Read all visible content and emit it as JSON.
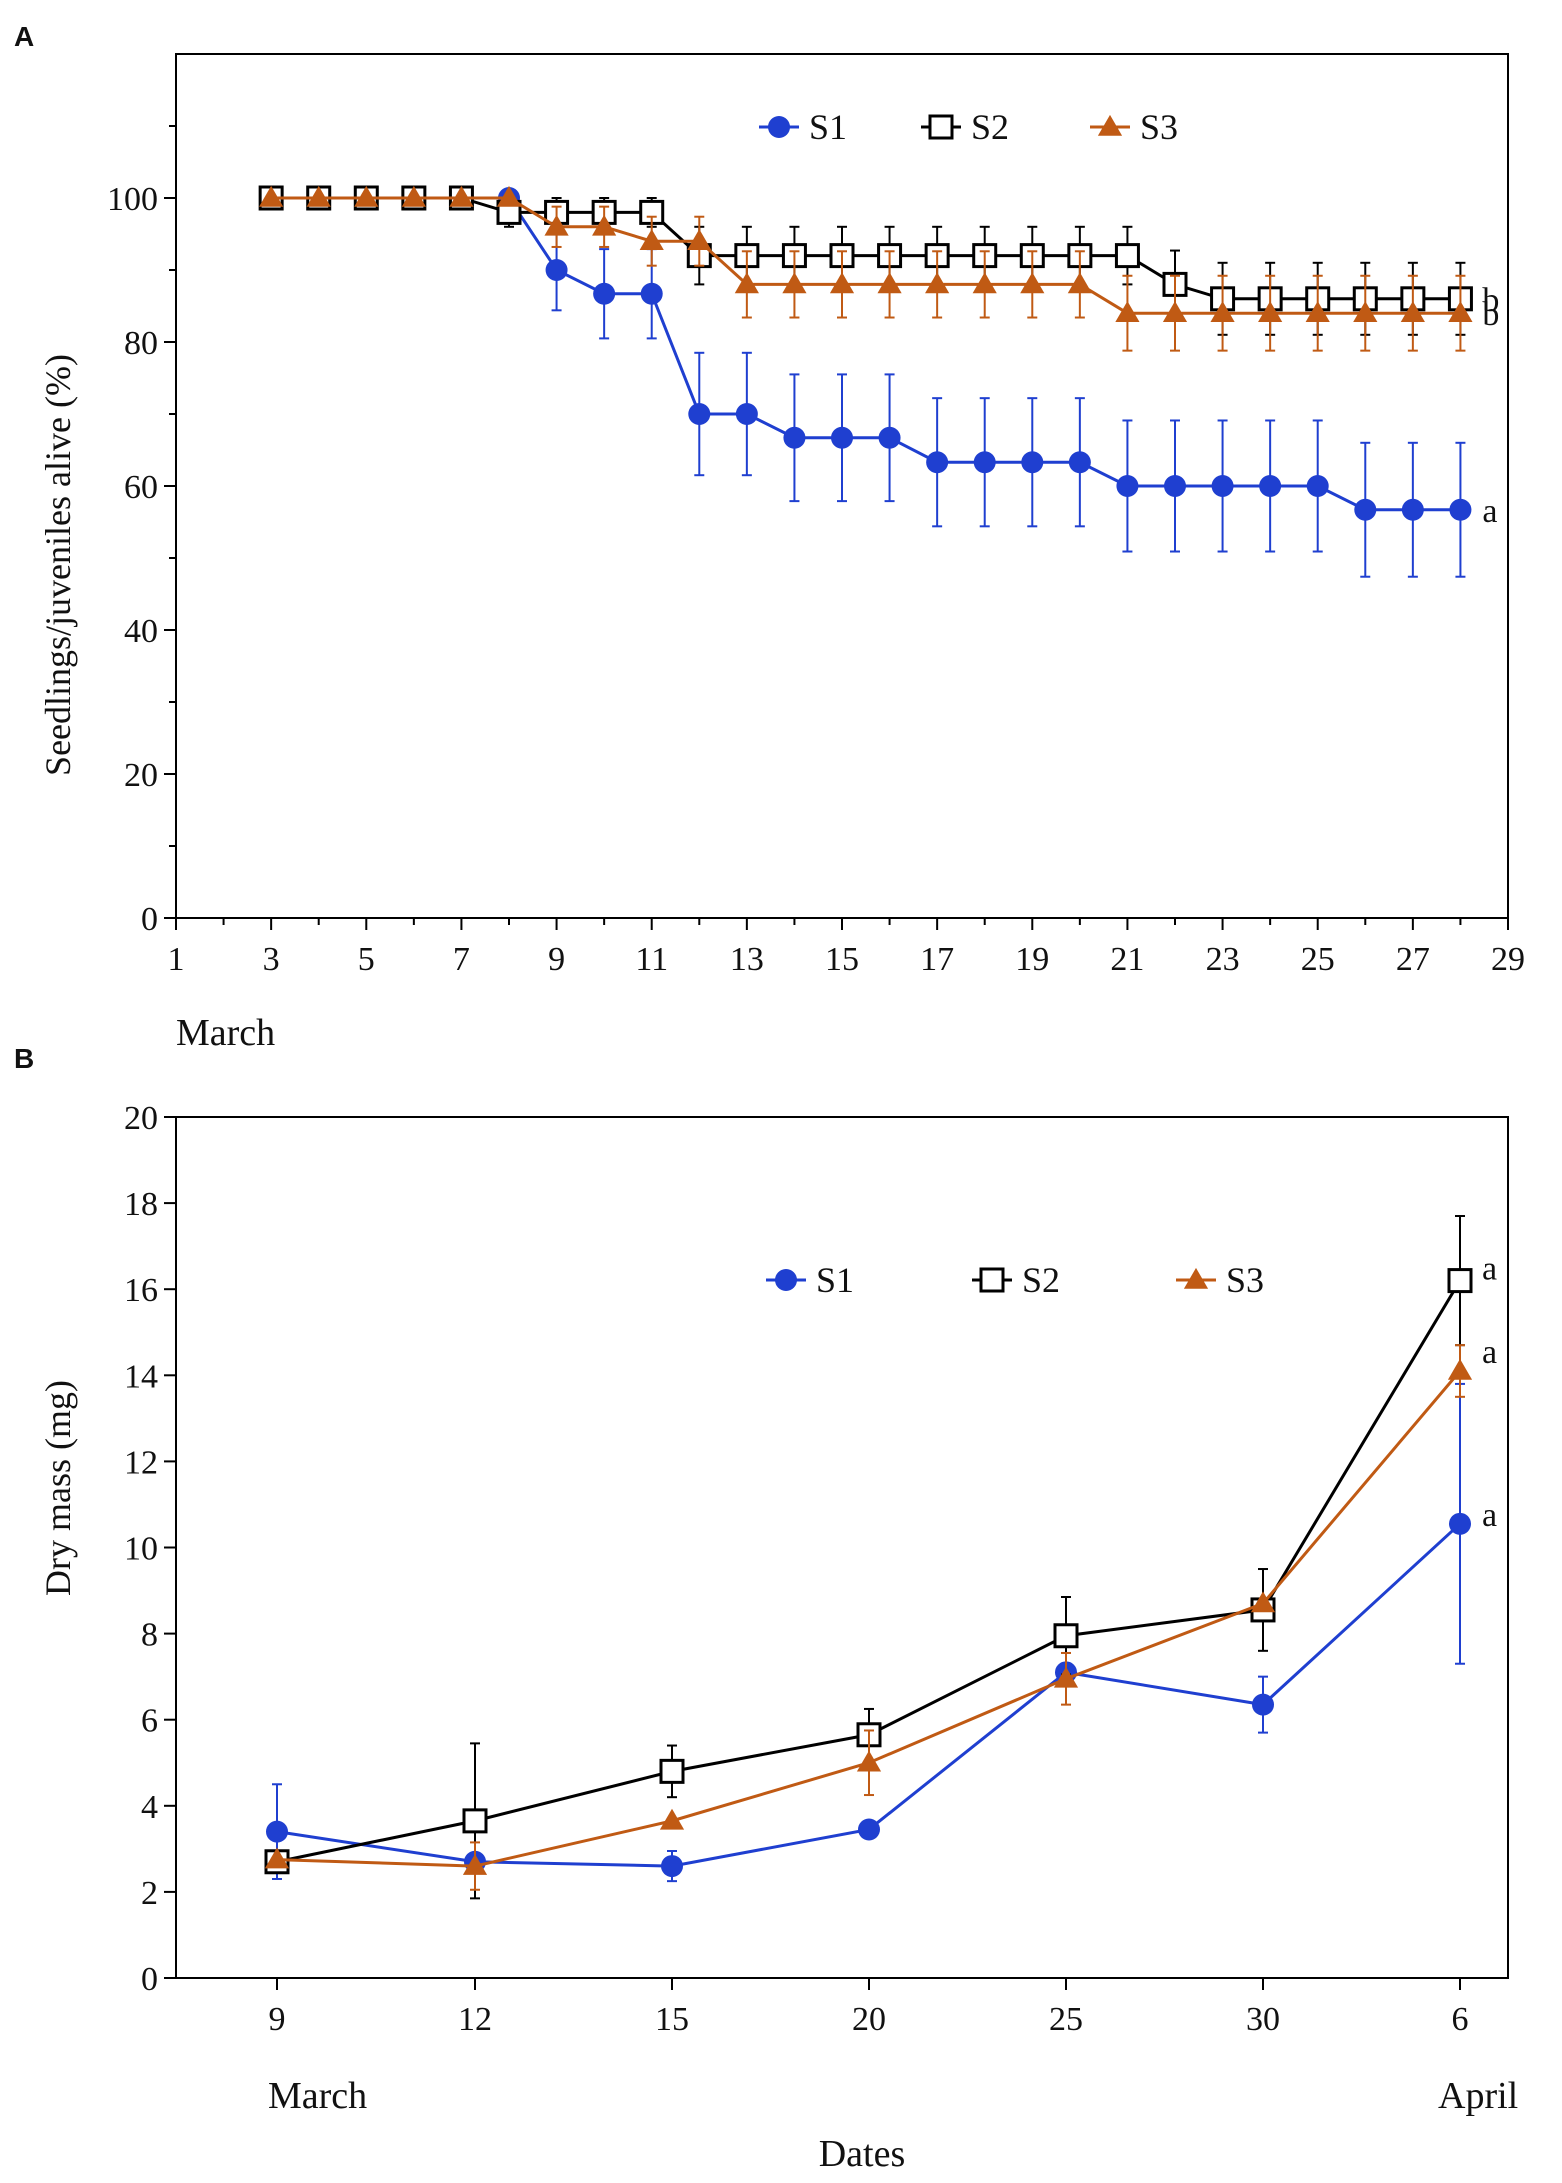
{
  "chart_data": [
    {
      "panel_label": "A",
      "type": "line",
      "ylabel": "Seedlings/juveniles alive (%)",
      "xlabel": "March",
      "xlim": [
        1,
        29
      ],
      "ylim": [
        0,
        120
      ],
      "x_ticks": [
        "1",
        "3",
        "5",
        "7",
        "9",
        "11",
        "13",
        "15",
        "17",
        "19",
        "21",
        "23",
        "25",
        "27",
        "29"
      ],
      "y_ticks": [
        "0",
        "20",
        "40",
        "60",
        "80",
        "100"
      ],
      "legend": [
        "S1",
        "S2",
        "S3"
      ],
      "series": [
        {
          "name": "S1",
          "color": "#1f3fd0",
          "marker": "circle",
          "x": [
            3,
            4,
            5,
            6,
            7,
            8,
            9,
            10,
            11,
            12,
            13,
            14,
            15,
            16,
            17,
            18,
            19,
            20,
            21,
            22,
            23,
            24,
            25,
            26,
            27,
            28
          ],
          "values": [
            100,
            100,
            100,
            100,
            100,
            100,
            90,
            86.7,
            86.7,
            70,
            70,
            66.7,
            66.7,
            66.7,
            63.3,
            63.3,
            63.3,
            63.3,
            60,
            60,
            60,
            60,
            60,
            56.7,
            56.7,
            56.7
          ],
          "errors": [
            0,
            0,
            0,
            0,
            0,
            0,
            5.6,
            6.2,
            6.2,
            8.5,
            8.5,
            8.8,
            8.8,
            8.8,
            8.9,
            8.9,
            8.9,
            8.9,
            9.1,
            9.1,
            9.1,
            9.1,
            9.1,
            9.3,
            9.3,
            9.3
          ],
          "letter": "a"
        },
        {
          "name": "S2",
          "color": "#000000",
          "marker": "square",
          "x": [
            3,
            4,
            5,
            6,
            7,
            8,
            9,
            10,
            11,
            12,
            13,
            14,
            15,
            16,
            17,
            18,
            19,
            20,
            21,
            22,
            23,
            24,
            25,
            26,
            27,
            28
          ],
          "values": [
            100,
            100,
            100,
            100,
            100,
            98,
            98,
            98,
            98,
            92,
            92,
            92,
            92,
            92,
            92,
            92,
            92,
            92,
            92,
            88,
            86,
            86,
            86,
            86,
            86,
            86
          ],
          "errors": [
            0,
            0,
            0,
            0,
            0,
            2,
            2,
            2,
            2,
            4,
            4,
            4,
            4,
            4,
            4,
            4,
            4,
            4,
            4,
            4.7,
            5,
            5,
            5,
            5,
            5,
            5
          ],
          "letter": "b"
        },
        {
          "name": "S3",
          "color": "#c05a14",
          "marker": "triangle",
          "x": [
            3,
            4,
            5,
            6,
            7,
            8,
            9,
            10,
            11,
            12,
            13,
            14,
            15,
            16,
            17,
            18,
            19,
            20,
            21,
            22,
            23,
            24,
            25,
            26,
            27,
            28
          ],
          "values": [
            100,
            100,
            100,
            100,
            100,
            100,
            96,
            96,
            94,
            94,
            88,
            88,
            88,
            88,
            88,
            88,
            88,
            88,
            84,
            84,
            84,
            84,
            84,
            84,
            84,
            84
          ],
          "errors": [
            0,
            0,
            0,
            0,
            0,
            0,
            2.8,
            2.8,
            3.4,
            3.4,
            4.6,
            4.6,
            4.6,
            4.6,
            4.6,
            4.6,
            4.6,
            4.6,
            5.2,
            5.2,
            5.2,
            5.2,
            5.2,
            5.2,
            5.2,
            5.2
          ],
          "letter": "b"
        }
      ]
    },
    {
      "panel_label": "B",
      "type": "line",
      "ylabel": "Dry mass (mg)",
      "xlabel": "Dates",
      "categories": [
        "9",
        "12",
        "15",
        "20",
        "25",
        "30",
        "6"
      ],
      "x_sublabels": [
        "March",
        "April"
      ],
      "ylim": [
        0,
        20
      ],
      "y_ticks": [
        "0",
        "2",
        "4",
        "6",
        "8",
        "10",
        "12",
        "14",
        "16",
        "18",
        "20"
      ],
      "legend": [
        "S1",
        "S2",
        "S3"
      ],
      "series": [
        {
          "name": "S1",
          "color": "#1f3fd0",
          "marker": "circle",
          "values": [
            3.4,
            2.7,
            2.6,
            3.45,
            7.1,
            6.35,
            10.55
          ],
          "errors": [
            1.1,
            0,
            0.35,
            0,
            0,
            0.65,
            3.25
          ],
          "letter": "a"
        },
        {
          "name": "S2",
          "color": "#000000",
          "marker": "square",
          "values": [
            2.7,
            3.65,
            4.8,
            5.65,
            7.95,
            8.55,
            16.2
          ],
          "errors": [
            0,
            1.8,
            0.6,
            0.6,
            0.9,
            0.95,
            1.5
          ],
          "letter": "a"
        },
        {
          "name": "S3",
          "color": "#c05a14",
          "marker": "triangle",
          "values": [
            2.75,
            2.6,
            3.65,
            5.0,
            6.95,
            8.7,
            14.1
          ],
          "errors": [
            0,
            0.55,
            0,
            0.75,
            0.6,
            0,
            0.6
          ],
          "letter": "a"
        }
      ]
    }
  ]
}
